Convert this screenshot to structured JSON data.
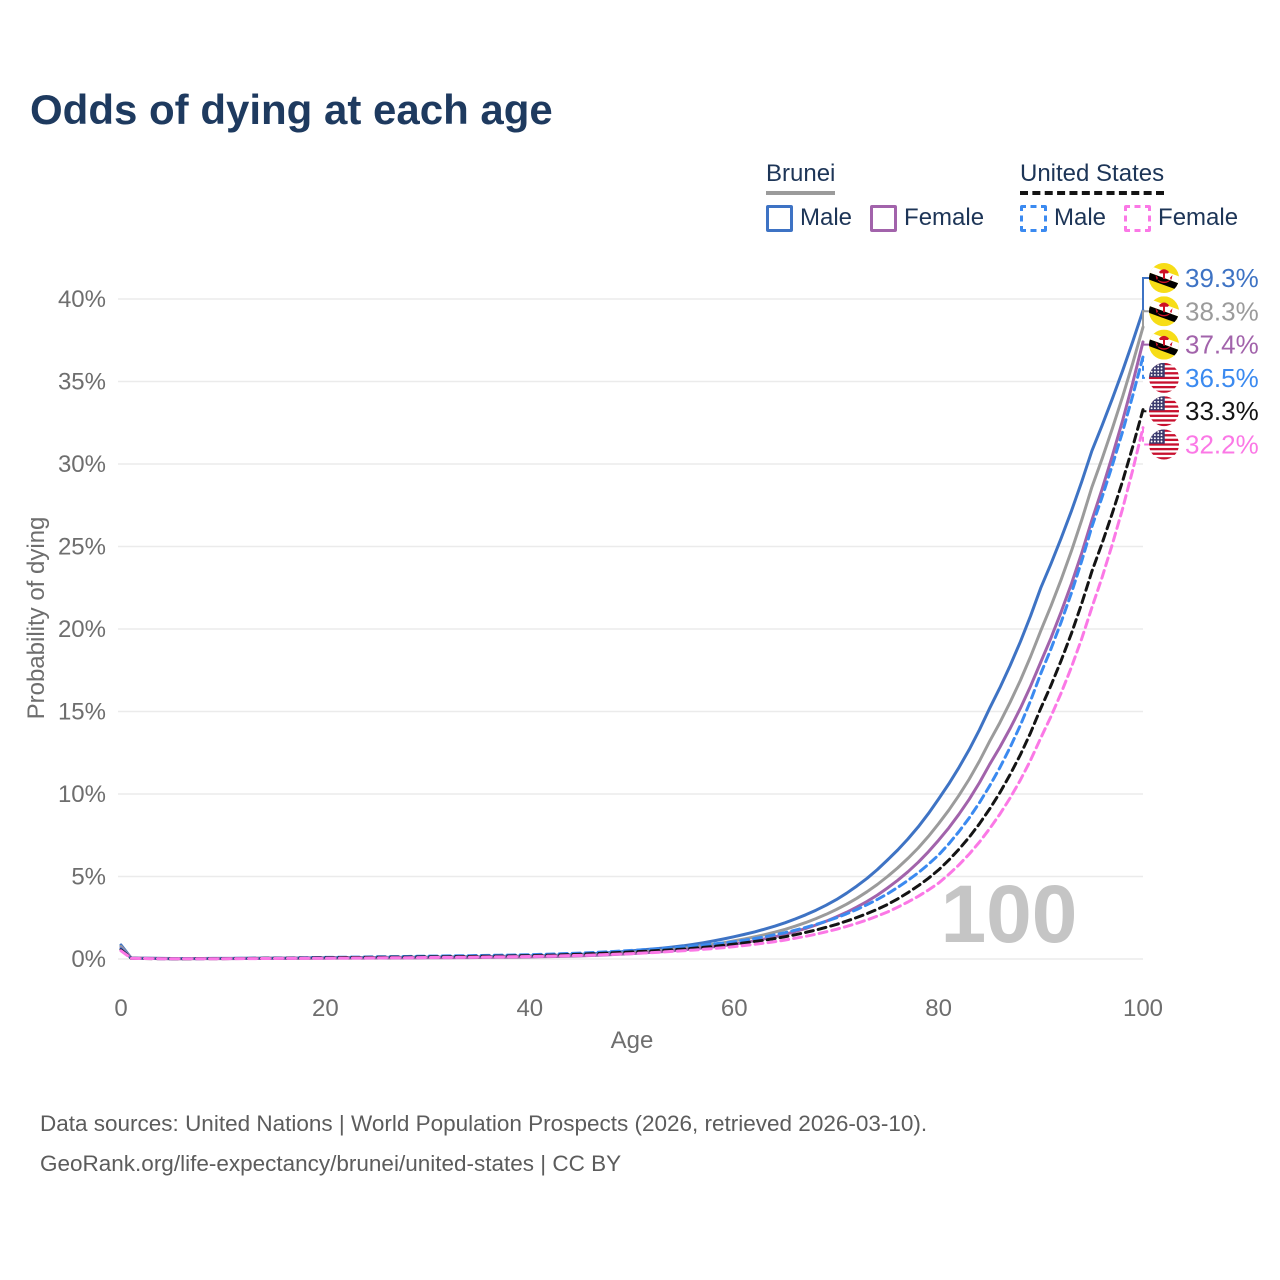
{
  "title": "Odds of dying at each age",
  "legend": {
    "groups": [
      {
        "country": "Brunei",
        "line_style": "solid",
        "underline_color": "#9b9b9b",
        "items": [
          {
            "label": "Male",
            "color": "#3E73C4"
          },
          {
            "label": "Female",
            "color": "#A263AB"
          }
        ]
      },
      {
        "country": "United States",
        "line_style": "dashed",
        "underline_color": "#141414",
        "items": [
          {
            "label": "Male",
            "color": "#3B8AF0"
          },
          {
            "label": "Female",
            "color": "#FB78E6"
          }
        ]
      }
    ]
  },
  "chart_data": {
    "type": "line",
    "title": "Odds of dying at each age",
    "xlabel": "Age",
    "ylabel": "Probability of dying",
    "xlim": [
      0,
      100
    ],
    "ylim_percent": [
      0,
      42
    ],
    "grid": true,
    "x_ticks": [
      "0",
      "20",
      "40",
      "60",
      "80",
      "100"
    ],
    "x_tick_values": [
      0,
      20,
      40,
      60,
      80,
      100
    ],
    "y_ticks": [
      {
        "value": 0,
        "label": "0%"
      },
      {
        "value": 5,
        "label": "5%"
      },
      {
        "value": 10,
        "label": "10%"
      },
      {
        "value": 15,
        "label": "15%"
      },
      {
        "value": 20,
        "label": "20%"
      },
      {
        "value": 25,
        "label": "25%"
      },
      {
        "value": 30,
        "label": "30%"
      },
      {
        "value": 35,
        "label": "35%"
      },
      {
        "value": 40,
        "label": "40%"
      }
    ],
    "hover_age": "100",
    "ages": [
      0,
      1,
      5,
      10,
      20,
      30,
      40,
      45,
      50,
      55,
      60,
      65,
      70,
      75,
      80,
      85,
      90,
      95,
      100
    ],
    "series": [
      {
        "id": "brunei-male",
        "country": "Brunei",
        "sex": "Male",
        "style": "solid",
        "color": "#3E73C4",
        "flag": "brunei",
        "end_label": "39.3%",
        "values": [
          0.85,
          0.06,
          0.03,
          0.035,
          0.08,
          0.11,
          0.18,
          0.28,
          0.5,
          0.8,
          1.35,
          2.2,
          3.6,
          6.0,
          9.7,
          15.2,
          22.5,
          30.8,
          39.3
        ]
      },
      {
        "id": "brunei-both",
        "country": "Brunei",
        "sex": "Both sexes",
        "style": "solid",
        "color": "#9B9B9B",
        "flag": "brunei",
        "end_label": "38.3%",
        "values": [
          0.75,
          0.055,
          0.025,
          0.03,
          0.06,
          0.09,
          0.15,
          0.23,
          0.4,
          0.65,
          1.1,
          1.8,
          3.0,
          5.0,
          8.2,
          13.2,
          19.9,
          28.6,
          38.3
        ]
      },
      {
        "id": "brunei-female",
        "country": "Brunei",
        "sex": "Female",
        "style": "solid",
        "color": "#A263AB",
        "flag": "brunei",
        "end_label": "37.4%",
        "values": [
          0.65,
          0.05,
          0.02,
          0.025,
          0.05,
          0.07,
          0.12,
          0.19,
          0.33,
          0.55,
          0.9,
          1.5,
          2.55,
          4.3,
          7.2,
          11.8,
          18.0,
          26.6,
          37.4
        ]
      },
      {
        "id": "us-male",
        "country": "United States",
        "sex": "Male",
        "style": "dashed",
        "color": "#3B8AF0",
        "flag": "us",
        "end_label": "36.5%",
        "values": [
          0.62,
          0.045,
          0.02,
          0.03,
          0.1,
          0.17,
          0.26,
          0.36,
          0.52,
          0.73,
          1.05,
          1.6,
          2.5,
          3.95,
          6.3,
          10.5,
          17.3,
          26.2,
          36.5
        ]
      },
      {
        "id": "us-both",
        "country": "United States",
        "sex": "Both sexes",
        "style": "dashed",
        "color": "#141414",
        "flag": "us",
        "end_label": "33.3%",
        "values": [
          0.56,
          0.04,
          0.018,
          0.025,
          0.08,
          0.13,
          0.2,
          0.29,
          0.43,
          0.6,
          0.9,
          1.35,
          2.1,
          3.3,
          5.4,
          9.1,
          15.2,
          23.5,
          33.3
        ]
      },
      {
        "id": "us-female",
        "country": "United States",
        "sex": "Female",
        "style": "dashed",
        "color": "#FB78E6",
        "flag": "us",
        "end_label": "32.2%",
        "values": [
          0.5,
          0.035,
          0.015,
          0.02,
          0.05,
          0.09,
          0.15,
          0.22,
          0.33,
          0.5,
          0.75,
          1.15,
          1.8,
          2.85,
          4.6,
          7.9,
          13.4,
          21.3,
          32.2
        ]
      }
    ]
  },
  "footer": {
    "line1": "Data sources: United Nations | World Population Prospects (2026, retrieved 2026-03-10).",
    "line2": "GeoRank.org/life-expectancy/brunei/united-states | CC BY"
  }
}
